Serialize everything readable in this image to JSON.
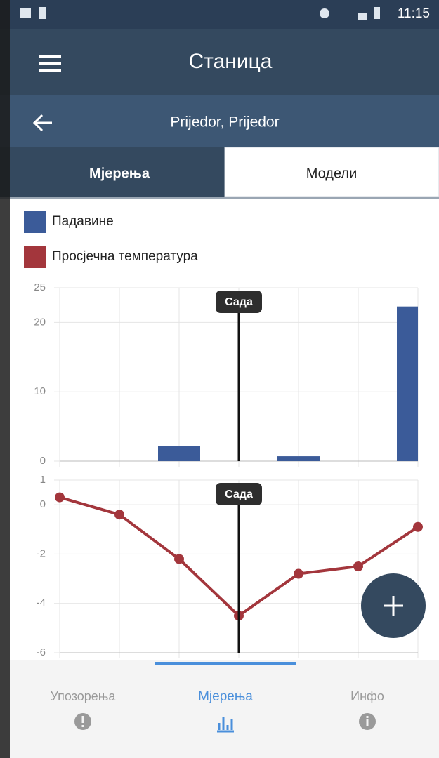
{
  "status_bar": {
    "time": "11:15"
  },
  "header": {
    "title": "Станица"
  },
  "subheader": {
    "title": "Prijedor, Prijedor"
  },
  "tabs": [
    "Мјерења",
    "Модели"
  ],
  "chart_data": [
    {
      "type": "bar",
      "annotation": "Сада",
      "categories": [
        null,
        null,
        null,
        null,
        null,
        null,
        null
      ],
      "series": [
        {
          "name": "Падавине",
          "color": "#3b5b99",
          "values": [
            0,
            0,
            2.2,
            0,
            0.7,
            0,
            22.3
          ]
        }
      ],
      "ylim": [
        0,
        25
      ],
      "yticks": [
        0,
        10,
        20,
        25
      ],
      "grid": true
    },
    {
      "type": "line",
      "annotation": "Сада",
      "categories": [
        null,
        null,
        null,
        null,
        null,
        null,
        null
      ],
      "series": [
        {
          "name": "Просјечна температура",
          "color": "#a3363c",
          "values": [
            0.3,
            -0.4,
            -2.2,
            -4.5,
            -2.8,
            -2.5,
            -0.9
          ]
        }
      ],
      "ylim": [
        -6,
        1
      ],
      "yticks": [
        -6,
        -4,
        -2,
        0,
        1
      ],
      "grid": true
    }
  ],
  "bottom_nav": [
    "Упозорења",
    "Мјерења",
    "Инфо"
  ]
}
